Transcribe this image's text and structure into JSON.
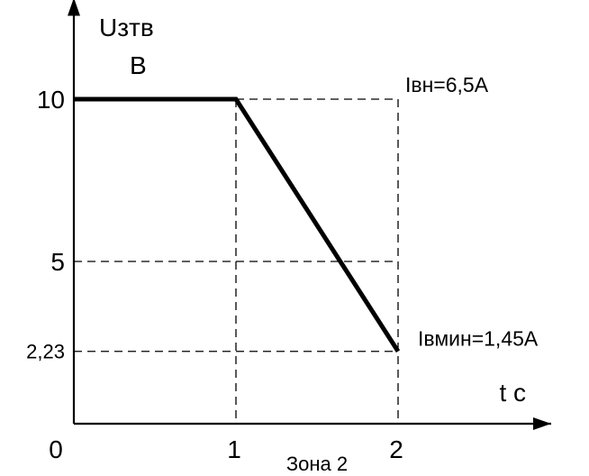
{
  "chart_data": {
    "type": "line",
    "ylabel": "Uзтв",
    "yunit": "В",
    "xlabel": "t с",
    "origin_label": "0",
    "x_ticks": [
      {
        "value": 1,
        "label": "1"
      },
      {
        "value": 2,
        "label": "2"
      }
    ],
    "y_ticks": [
      {
        "value": 10,
        "label": "10"
      },
      {
        "value": 5,
        "label": "5"
      },
      {
        "value": 2.23,
        "label": "2,23"
      }
    ],
    "xlim": [
      0,
      2.9
    ],
    "ylim": [
      0,
      12.9
    ],
    "grid": "dashed",
    "series": [
      {
        "x": [
          0,
          1,
          2
        ],
        "y": [
          10,
          10,
          2.23
        ]
      }
    ],
    "annotations": [
      {
        "text": "Iвн=6,5А"
      },
      {
        "text": "Iвмин=1,45А"
      },
      {
        "text": "Зона 2"
      }
    ]
  }
}
